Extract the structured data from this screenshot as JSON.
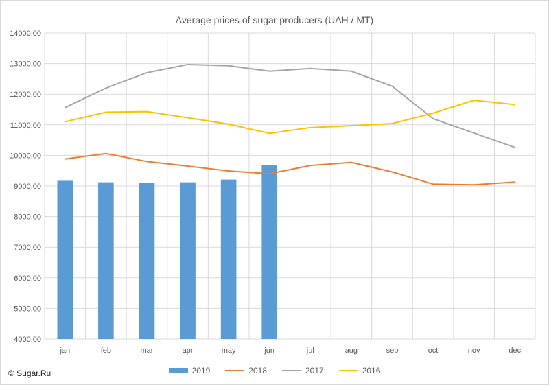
{
  "chart_data": {
    "type": "bar+line",
    "title": "Average prices of sugar producers (UAH / MT)",
    "categories": [
      "jan",
      "feb",
      "mar",
      "apr",
      "may",
      "jun",
      "jul",
      "aug",
      "sep",
      "oct",
      "nov",
      "dec"
    ],
    "ylim": [
      4000,
      14000
    ],
    "yticks": [
      "4000,00",
      "5000,00",
      "6000,00",
      "7000,00",
      "8000,00",
      "9000,00",
      "10000,00",
      "11000,00",
      "12000,00",
      "13000,00",
      "14000,00"
    ],
    "ytick_values": [
      4000,
      5000,
      6000,
      7000,
      8000,
      9000,
      10000,
      11000,
      12000,
      13000,
      14000
    ],
    "grid": true,
    "legend_position": "bottom",
    "series": [
      {
        "name": "2019",
        "kind": "bar",
        "color": "#5b9bd5",
        "values": [
          9170,
          9120,
          9100,
          9120,
          9210,
          9690,
          null,
          null,
          null,
          null,
          null,
          null
        ]
      },
      {
        "name": "2018",
        "kind": "line",
        "color": "#ed7d31",
        "values": [
          9880,
          10060,
          9800,
          9650,
          9490,
          9400,
          9670,
          9770,
          9460,
          9060,
          9040,
          9130
        ]
      },
      {
        "name": "2017",
        "kind": "line",
        "color": "#a5a5a5",
        "values": [
          11560,
          12200,
          12700,
          12970,
          12930,
          12750,
          12840,
          12750,
          12260,
          11200,
          10730,
          10260
        ]
      },
      {
        "name": "2016",
        "kind": "line",
        "color": "#ffc000",
        "values": [
          11100,
          11410,
          11430,
          11230,
          11020,
          10720,
          10910,
          10970,
          11040,
          11380,
          11800,
          11660
        ]
      }
    ]
  },
  "watermark": "© Sugar.Ru"
}
